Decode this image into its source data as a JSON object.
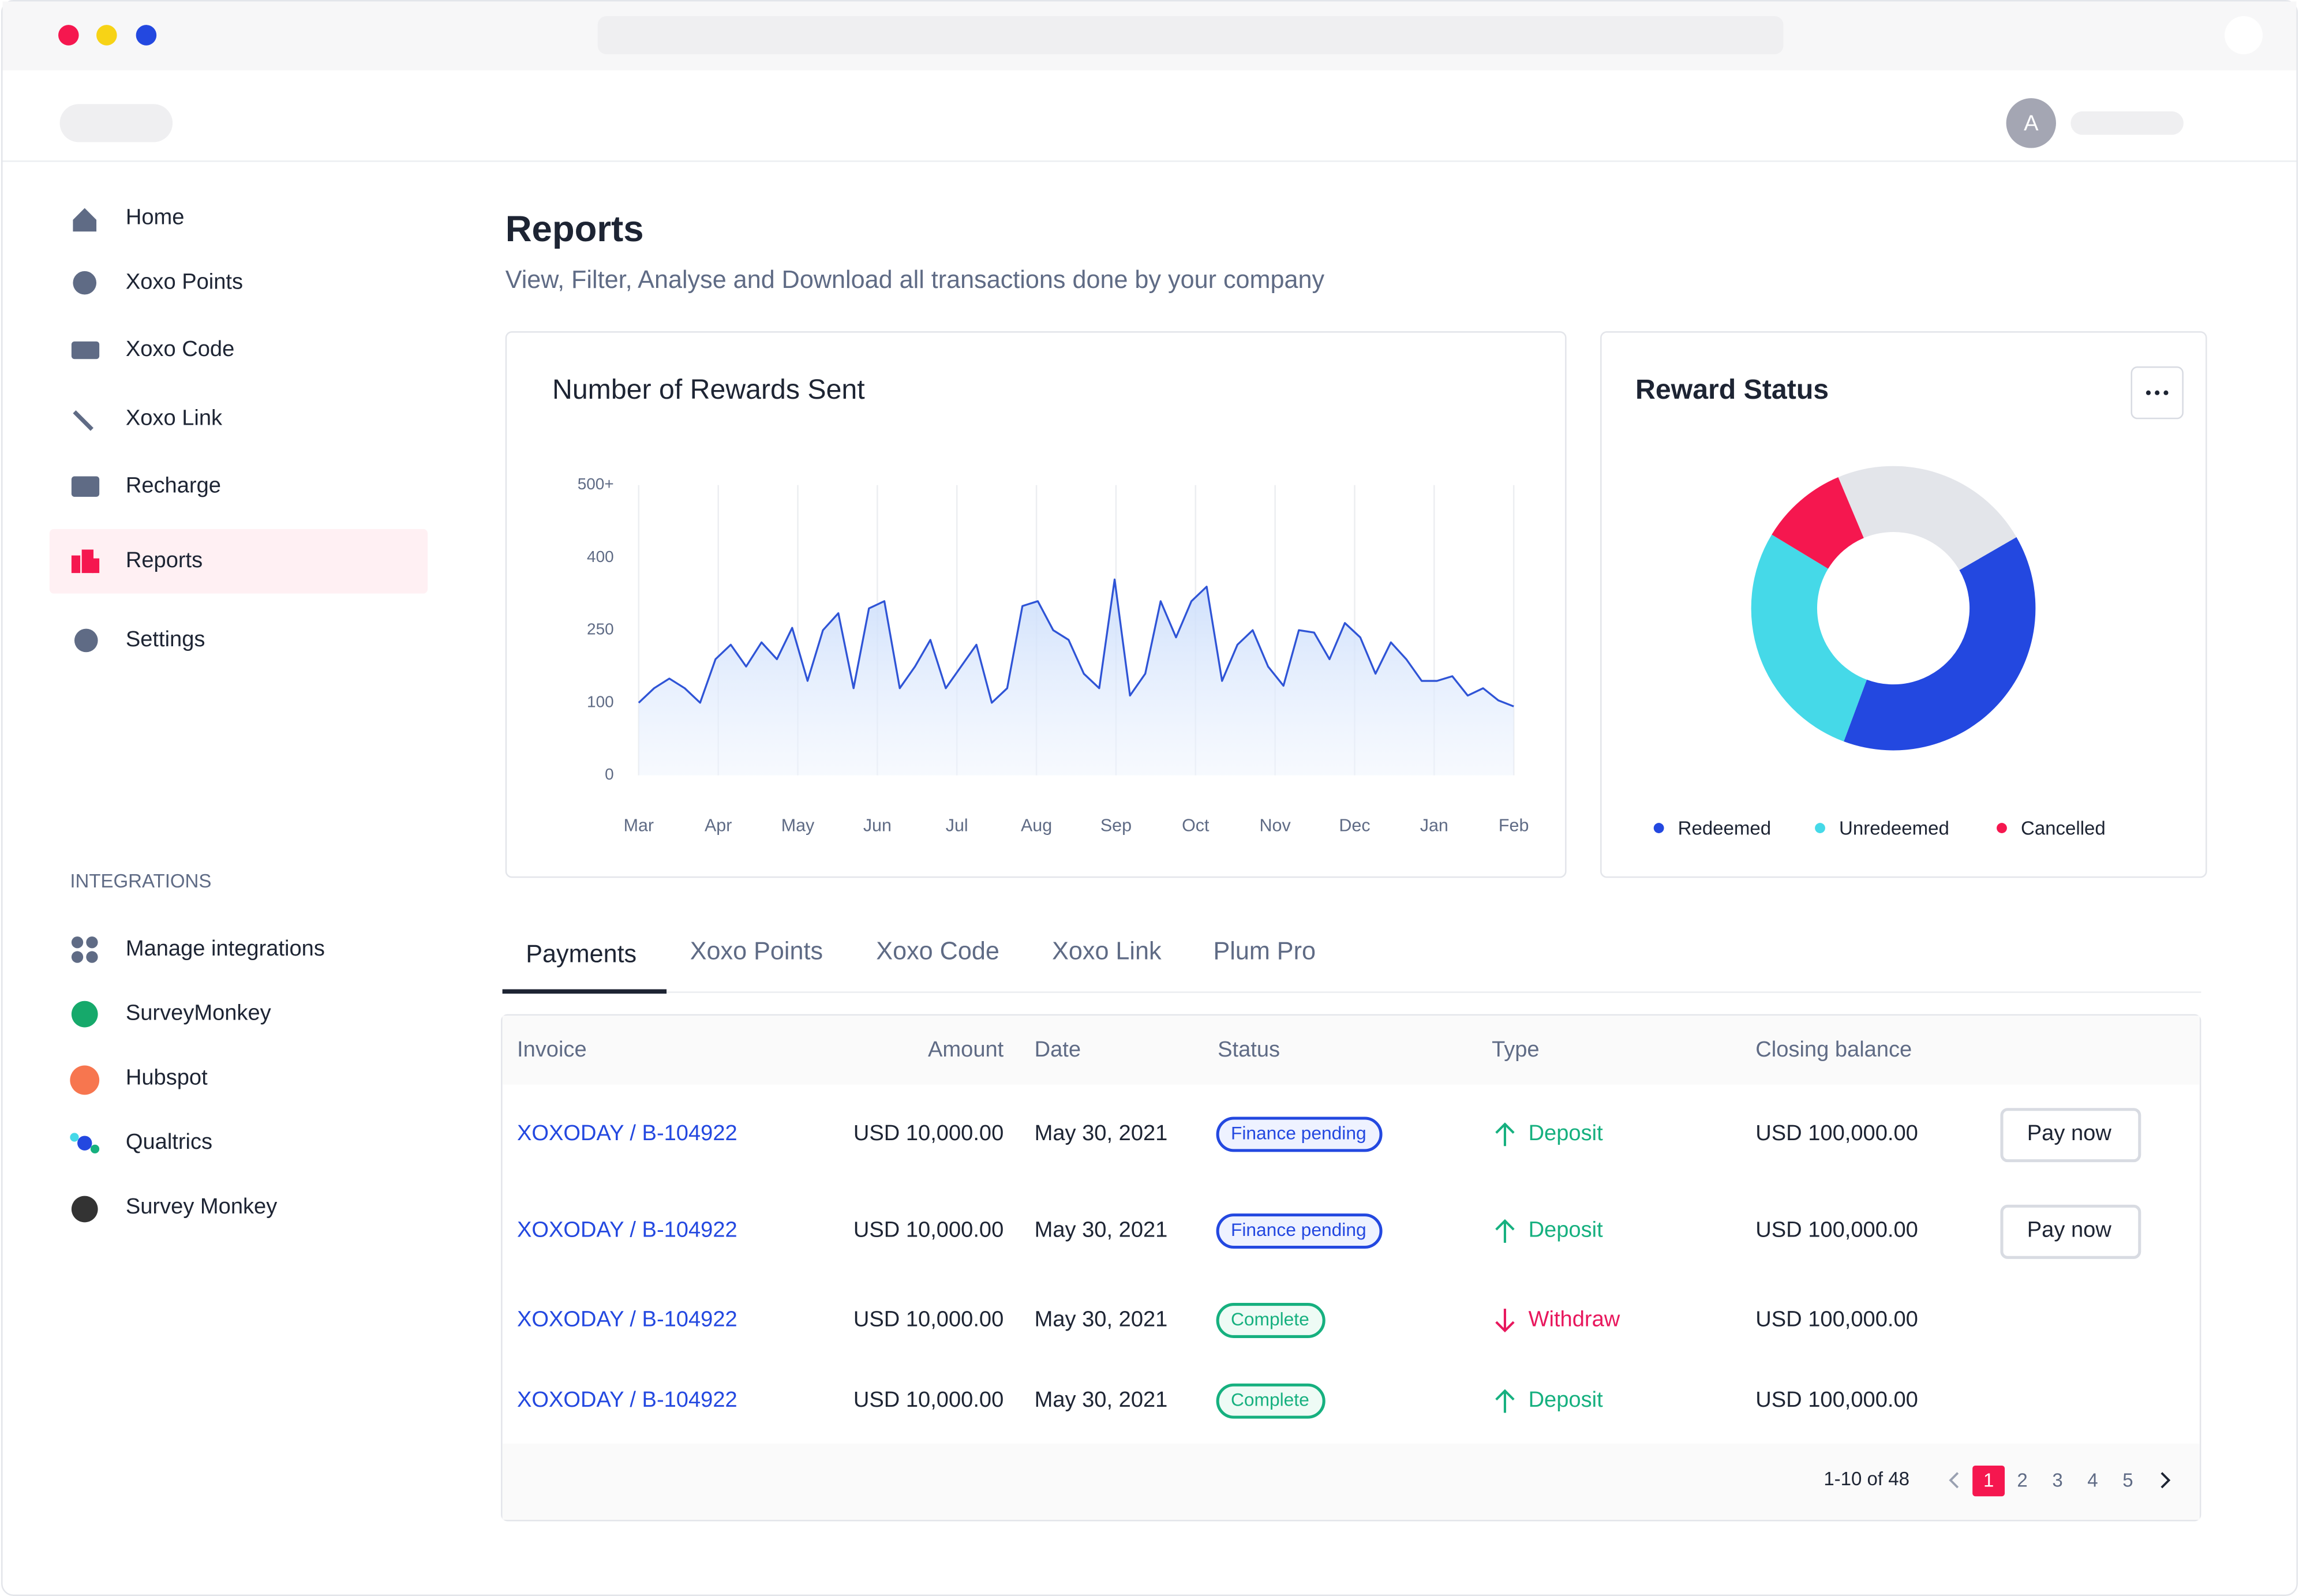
{
  "nav": [
    "Home",
    "Xoxo Points",
    "Xoxo Code",
    "Xoxo Link",
    "Recharge",
    "Reports",
    "Settings"
  ],
  "nav_active": 5,
  "integrations_heading": "INTEGRATIONS",
  "integrations": [
    "Manage integrations",
    "SurveyMonkey",
    "Hubspot",
    "Qualtrics",
    "Survey Monkey"
  ],
  "avatar": "A",
  "page_title": "Reports",
  "page_subtitle": "View, Filter, Analyse and Download all transactions done by your company",
  "chart_data": [
    {
      "type": "area",
      "title": "Number of Rewards Sent",
      "color": "#2f54d6",
      "x_labels": [
        "Mar",
        "Apr",
        "May",
        "Jun",
        "Jul",
        "Aug",
        "Sep",
        "Oct",
        "Nov",
        "Dec",
        "Jan",
        "Feb"
      ],
      "values": [
        100,
        130,
        150,
        130,
        100,
        190,
        220,
        175,
        225,
        190,
        255,
        145,
        250,
        285,
        130,
        295,
        310,
        130,
        175,
        230,
        130,
        175,
        220,
        100,
        130,
        300,
        310,
        250,
        230,
        160,
        130,
        355,
        115,
        160,
        310,
        235,
        310,
        340,
        145,
        220,
        250,
        175,
        135,
        250,
        245,
        190,
        265,
        235,
        160,
        225,
        190,
        145,
        145,
        155,
        115,
        130,
        105,
        95
      ],
      "ylim": [
        0,
        500
      ],
      "yticks": [
        0,
        100,
        250,
        400,
        {
          "value": 500,
          "label": "500+"
        }
      ]
    },
    {
      "type": "donut",
      "title": "Reward Status",
      "categories": [
        "Redeemed",
        "Unredeemed",
        "Cancelled",
        null
      ],
      "values": [
        39,
        28,
        10,
        23
      ],
      "colors": [
        "#2348e0",
        "#45d9e8",
        "#f5174f",
        "#e3e5ea"
      ],
      "start_angle": 60
    }
  ],
  "tabs": [
    "Payments",
    "Xoxo Points",
    "Xoxo Code",
    "Xoxo Link",
    "Plum Pro"
  ],
  "tab_active": 0,
  "table": {
    "columns": [
      "Invoice",
      "Amount",
      "Date",
      "Status",
      "Type",
      "Closing balance"
    ],
    "rows": [
      [
        "XOXODAY / B-104922",
        "USD 10,000.00",
        "May 30, 2021",
        "Finance pending",
        "Deposit",
        "USD 100,000.00",
        "Pay now"
      ],
      [
        "XOXODAY / B-104922",
        "USD 10,000.00",
        "May 30, 2021",
        "Finance pending",
        "Deposit",
        "USD 100,000.00",
        "Pay now"
      ],
      [
        "XOXODAY / B-104922",
        "USD 10,000.00",
        "May 30, 2021",
        "Complete",
        "Withdraw",
        "USD 100,000.00",
        null
      ],
      [
        "XOXODAY / B-104922",
        "USD 10,000.00",
        "May 30, 2021",
        "Complete",
        "Deposit",
        "USD 100,000.00",
        null
      ]
    ],
    "row_styles": [
      {
        "status_color": "#2348e0",
        "status_fill": "#eef2ff",
        "type_color": "#16b07f",
        "type_icon": "arrow-up"
      },
      {
        "status_color": "#2348e0",
        "status_fill": "#eef2ff",
        "type_color": "#16b07f",
        "type_icon": "arrow-up"
      },
      {
        "status_color": "#16b07f",
        "status_fill": "#eefbf5",
        "type_color": "#e8175d",
        "type_icon": "arrow-down"
      },
      {
        "status_color": "#16b07f",
        "status_fill": "#eefbf5",
        "type_color": "#16b07f",
        "type_icon": "arrow-up"
      }
    ]
  },
  "pagination": {
    "summary": "1-10 of 48",
    "pages": [
      1,
      2,
      3,
      4,
      5
    ],
    "current": 1
  }
}
